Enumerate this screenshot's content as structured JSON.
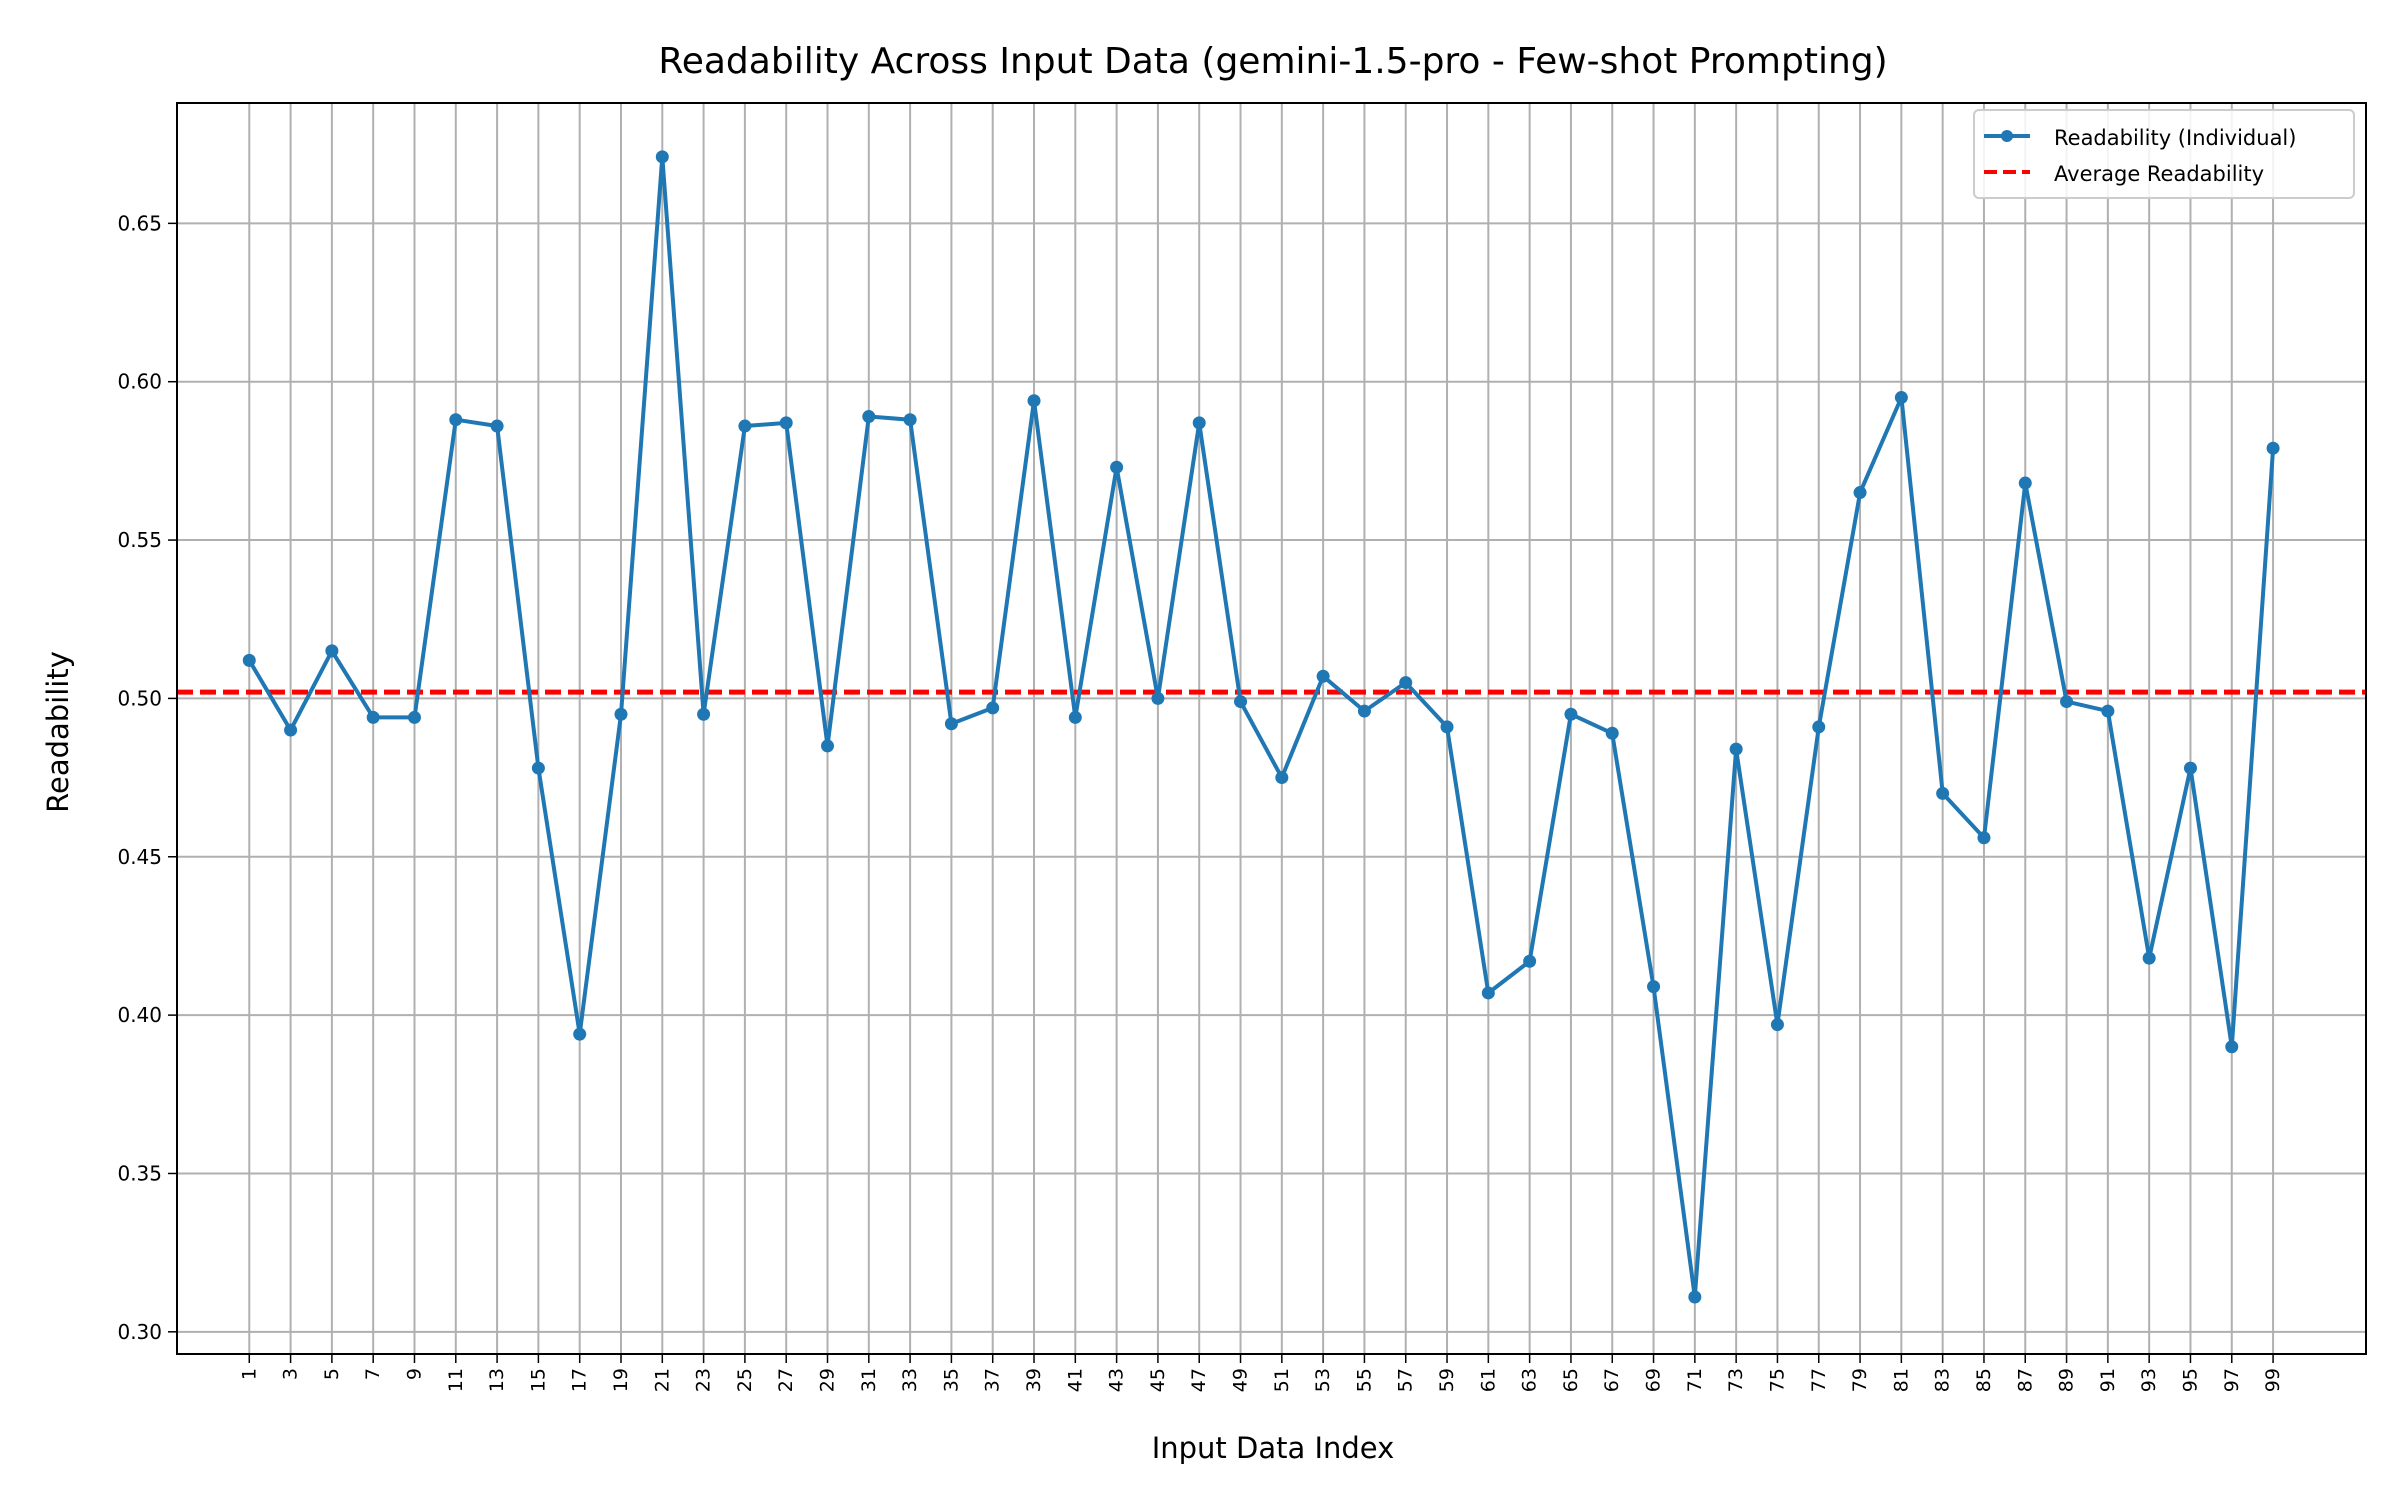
{
  "chart_data": {
    "type": "line",
    "title": "Readability Across Input Data (gemini-1.5-pro - Few-shot Prompting)",
    "xlabel": "Input Data Index",
    "ylabel": "Readability",
    "xlim": [
      -2.5,
      103.5
    ],
    "ylim": [
      0.293,
      0.688
    ],
    "x_ticks": [
      1,
      3,
      5,
      7,
      9,
      11,
      13,
      15,
      17,
      19,
      21,
      23,
      25,
      27,
      29,
      31,
      33,
      35,
      37,
      39,
      41,
      43,
      45,
      47,
      49,
      51,
      53,
      55,
      57,
      59,
      61,
      63,
      65,
      67,
      69,
      71,
      73,
      75,
      77,
      79,
      81,
      83,
      85,
      87,
      89,
      91,
      93,
      95,
      97,
      99
    ],
    "y_ticks": [
      0.3,
      0.35,
      0.4,
      0.45,
      0.5,
      0.55,
      0.6,
      0.65
    ],
    "grid": true,
    "legend_position": "top-right",
    "series": [
      {
        "name": "Readability (Individual)",
        "color": "#1f77b4",
        "x": [
          1,
          3,
          5,
          7,
          9,
          11,
          13,
          15,
          17,
          19,
          21,
          23,
          25,
          27,
          29,
          31,
          33,
          35,
          37,
          39,
          41,
          43,
          45,
          47,
          49,
          51,
          53,
          55,
          57,
          59,
          61,
          63,
          65,
          67,
          69,
          71,
          73,
          75,
          77,
          79,
          81,
          83,
          85,
          87,
          89,
          91,
          93,
          95,
          97,
          99
        ],
        "y": [
          0.512,
          0.49,
          0.515,
          0.494,
          0.494,
          0.588,
          0.586,
          0.478,
          0.394,
          0.495,
          0.671,
          0.495,
          0.586,
          0.587,
          0.485,
          0.589,
          0.588,
          0.492,
          0.497,
          0.594,
          0.494,
          0.573,
          0.5,
          0.587,
          0.499,
          0.475,
          0.507,
          0.496,
          0.505,
          0.491,
          0.407,
          0.417,
          0.495,
          0.489,
          0.409,
          0.311,
          0.484,
          0.397,
          0.491,
          0.565,
          0.595,
          0.47,
          0.456,
          0.568,
          0.499,
          0.496,
          0.418,
          0.478,
          0.39,
          0.579
        ]
      }
    ],
    "average_line": {
      "name": "Average Readability",
      "value": 0.502,
      "color": "#ff0000",
      "style": "dashed"
    }
  }
}
